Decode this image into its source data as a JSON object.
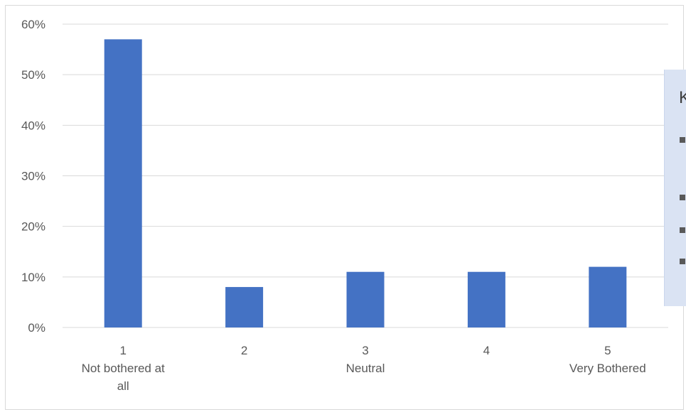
{
  "chart_data": {
    "type": "bar",
    "categories": [
      "1",
      "2",
      "3",
      "4",
      "5"
    ],
    "category_sublabels": [
      [
        "Not bothered at",
        "all"
      ],
      [],
      [
        "Neutral"
      ],
      [],
      [
        "Very Bothered"
      ]
    ],
    "values": [
      57,
      8,
      11,
      11,
      12
    ],
    "value_format": "percent",
    "y_ticks": [
      "0%",
      "10%",
      "20%",
      "30%",
      "40%",
      "50%",
      "60%"
    ],
    "ylim": [
      0,
      60
    ],
    "grid": true,
    "bar_color": "#4472c4",
    "gridline_color": "#d9d9d9",
    "title": "",
    "xlabel": "",
    "ylabel": ""
  },
  "side_panel": {
    "title_fragment": "K",
    "background": "#dae3f3"
  }
}
